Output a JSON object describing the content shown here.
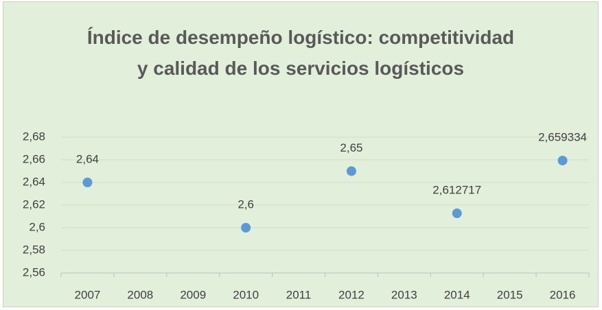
{
  "chart_data": {
    "type": "scatter",
    "title": "Índice de desempeño logístico: competitividad y calidad de los servicios logísticos",
    "categories": [
      "2007",
      "2008",
      "2009",
      "2010",
      "2011",
      "2012",
      "2013",
      "2014",
      "2015",
      "2016"
    ],
    "series": [
      {
        "color": "#5b9bd5",
        "values": [
          2.64,
          null,
          null,
          2.6,
          null,
          2.65,
          null,
          2.612717,
          null,
          2.659334
        ],
        "value_labels": [
          "2,64",
          null,
          null,
          "2,6",
          null,
          "2,65",
          null,
          "2,612717",
          null,
          "2,659334"
        ]
      }
    ],
    "ylim": [
      2.56,
      2.68
    ],
    "yticks": [
      {
        "value": 2.56,
        "label": "2,56"
      },
      {
        "value": 2.58,
        "label": "2,58"
      },
      {
        "value": 2.6,
        "label": "2,6"
      },
      {
        "value": 2.62,
        "label": "2,62"
      },
      {
        "value": 2.64,
        "label": "2,64"
      },
      {
        "value": 2.66,
        "label": "2,66"
      },
      {
        "value": 2.68,
        "label": "2,68"
      }
    ],
    "grid": true
  }
}
